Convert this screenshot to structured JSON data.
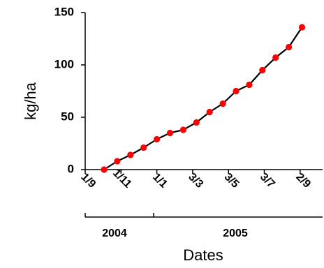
{
  "chart_data": {
    "type": "line",
    "title": "",
    "xlabel": "Dates",
    "ylabel": "kg/ha",
    "ylim": [
      0,
      150
    ],
    "yticks": [
      "0",
      "50",
      "100",
      "150"
    ],
    "xticks": [
      "1/9",
      "1/11",
      "1/1",
      "3/3",
      "3/5",
      "3/7",
      "2/9"
    ],
    "year_groups": [
      "2004",
      "2005"
    ],
    "grid": false,
    "legend": "none",
    "line_color": "#000000",
    "marker_color": "#ff0000",
    "series": [
      {
        "values": [
          0,
          8,
          14,
          21,
          29,
          35,
          38,
          45,
          55,
          63,
          75,
          81,
          95,
          107,
          117,
          136
        ]
      }
    ]
  }
}
